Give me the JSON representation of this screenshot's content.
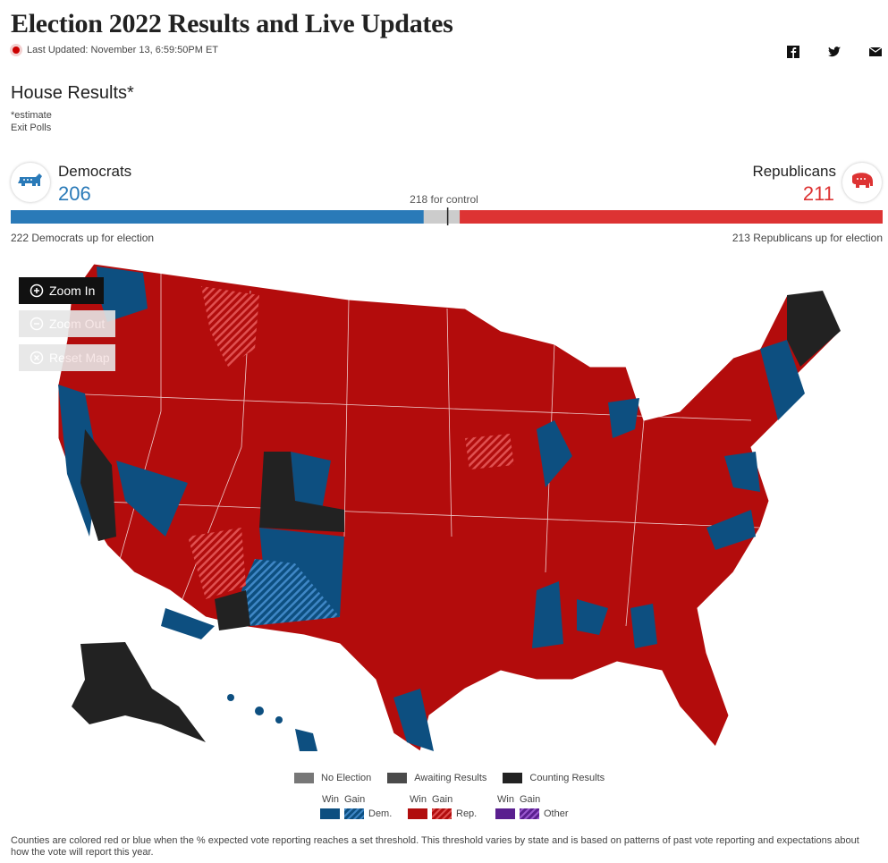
{
  "header": {
    "title": "Election 2022 Results and Live Updates",
    "last_updated": "Last Updated: November 13, 6:59:50PM ET"
  },
  "section": {
    "title": "House Results*",
    "notes": [
      "*estimate",
      "Exit Polls"
    ]
  },
  "democrats": {
    "label": "Democrats",
    "seats": 206,
    "up_for_election": "222 Democrats up for election",
    "color": "#2a7ab8"
  },
  "republicans": {
    "label": "Republicans",
    "seats": 211,
    "up_for_election": "213 Republicans up for election",
    "color": "#d33"
  },
  "control": {
    "value": 218,
    "label": "218 for control"
  },
  "map_buttons": [
    "Zoom In",
    "Zoom Out",
    "Reset Map"
  ],
  "legend": {
    "status": [
      "No Election",
      "Awaiting Results",
      "Counting Results"
    ],
    "win": "Win",
    "gain": "Gain",
    "parties": [
      "Dem.",
      "Rep.",
      "Other"
    ]
  },
  "footnote": "Counties are colored red or blue when the % expected vote reporting reaches a set threshold. This threshold varies by state and is based on patterns of past vote reporting and expectations about how the vote will report this year."
}
